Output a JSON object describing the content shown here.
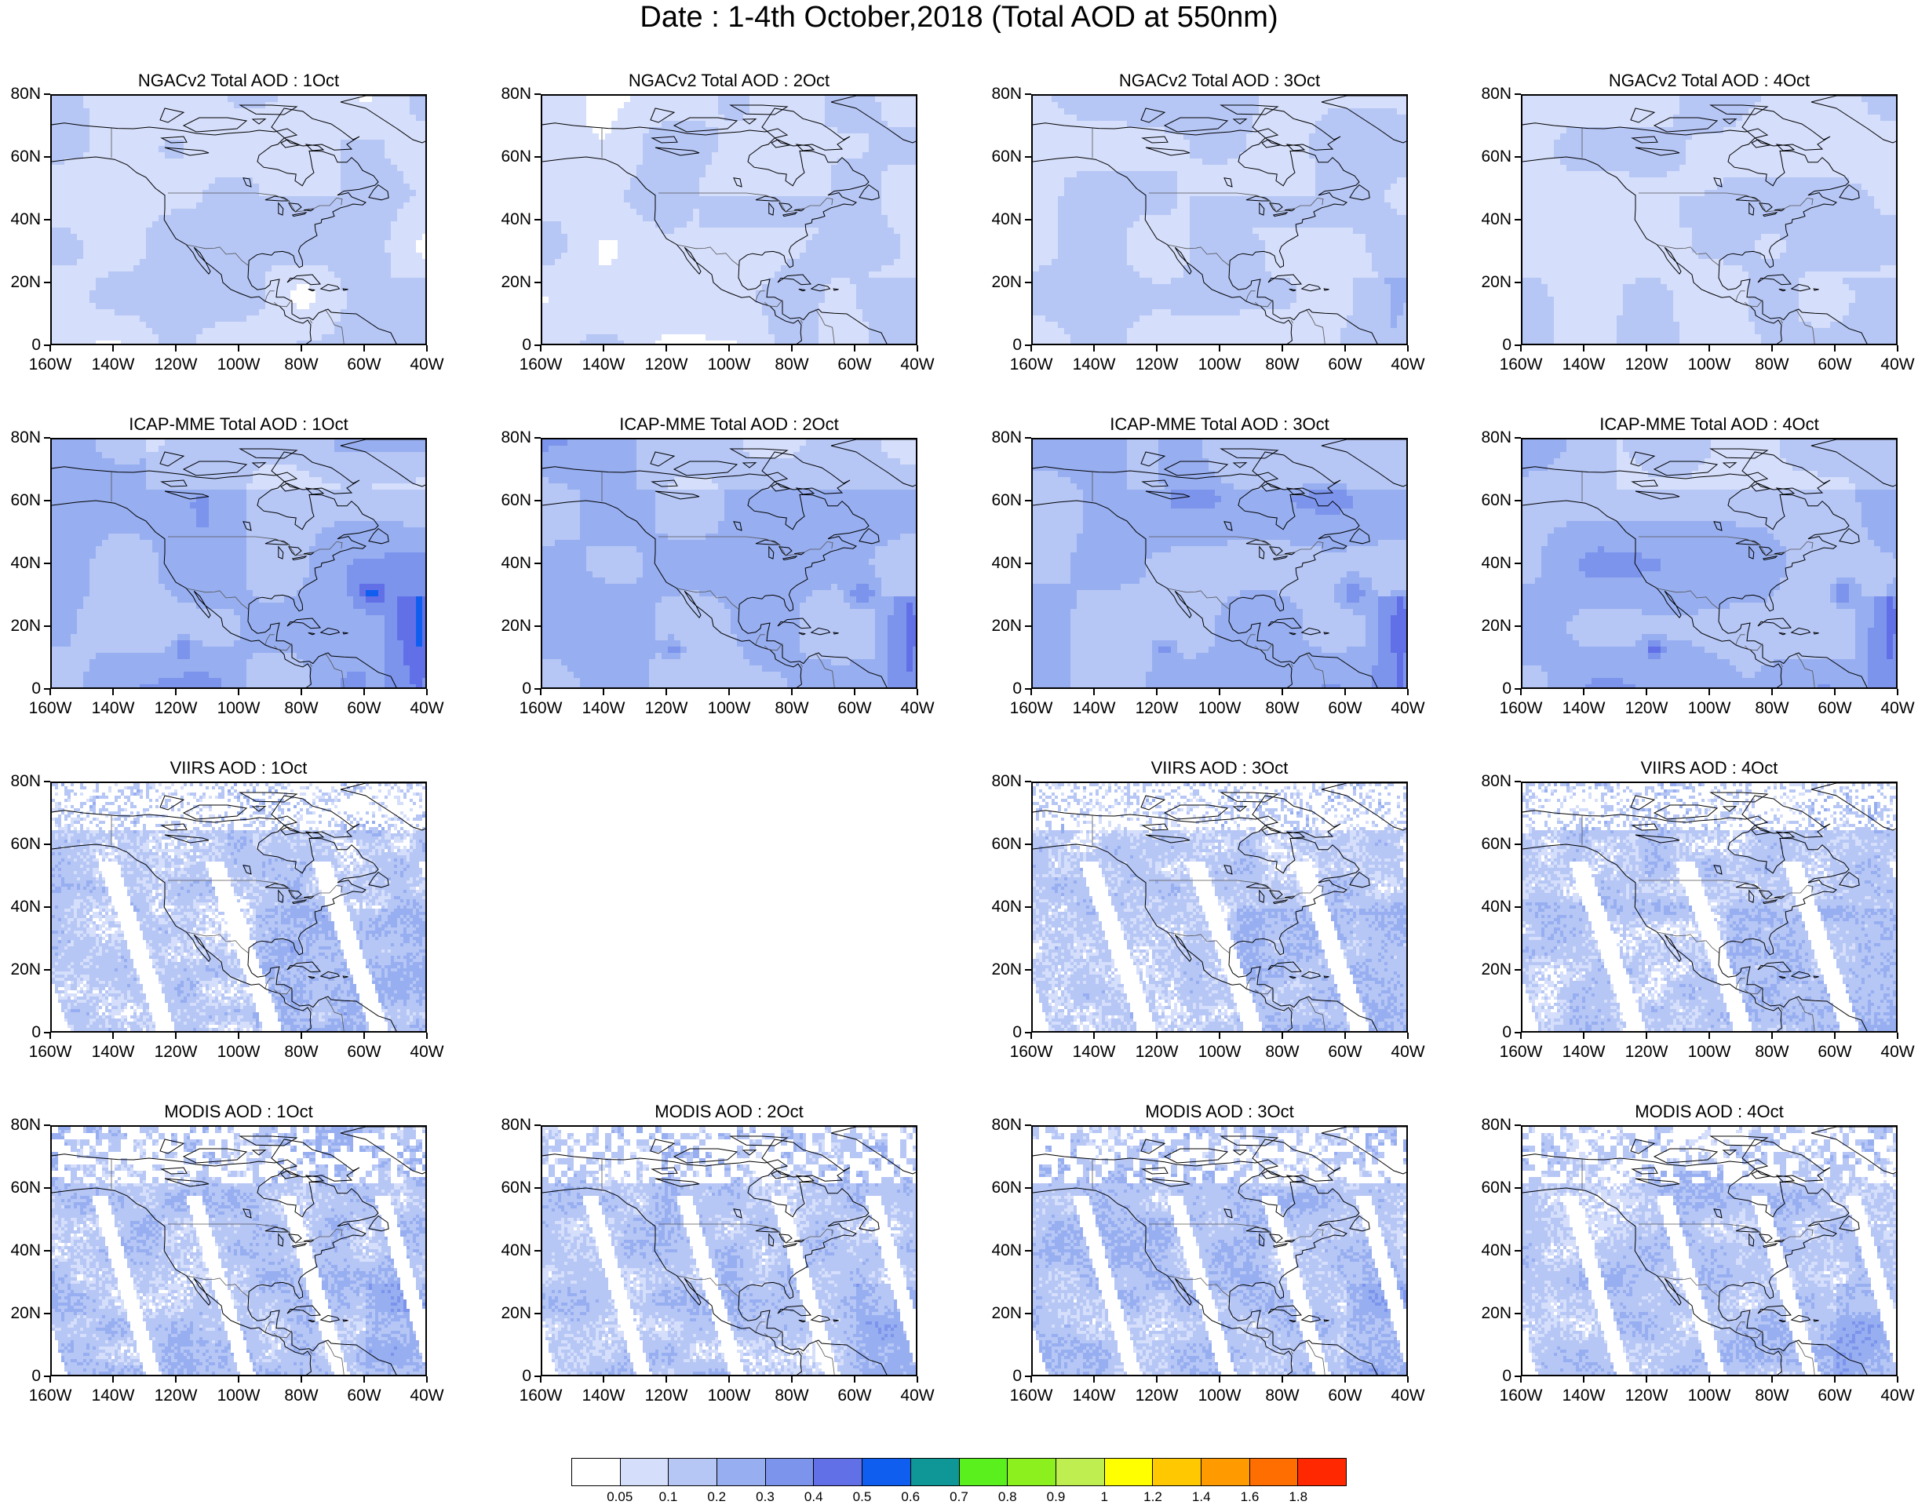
{
  "title": "Date : 1-4th October,2018 (Total AOD at 550nm)",
  "map": {
    "lon_range": [
      -160,
      -40
    ],
    "lat_range": [
      0,
      80
    ],
    "y_ticks": [
      "80N",
      "60N",
      "40N",
      "20N",
      "0"
    ],
    "x_ticks": [
      "160W",
      "140W",
      "120W",
      "100W",
      "80W",
      "60W",
      "40W"
    ]
  },
  "colorbar": {
    "colors": [
      "#ffffff",
      "#d5defa",
      "#b6c6f5",
      "#97aef0",
      "#7c94ec",
      "#6270e8",
      "#0f5ef0",
      "#0f9696",
      "#5af01e",
      "#8cf01e",
      "#beee50",
      "#ffff00",
      "#ffc800",
      "#ff9b00",
      "#ff6e00",
      "#ff2800"
    ],
    "labels": [
      "0.05",
      "0.1",
      "0.2",
      "0.3",
      "0.4",
      "0.5",
      "0.6",
      "0.7",
      "0.8",
      "0.9",
      "1",
      "1.2",
      "1.4",
      "1.6",
      "1.8"
    ]
  },
  "panels": [
    {
      "row": 0,
      "col": 0,
      "title": "NGACv2 Total AOD : 1Oct",
      "dataset": "ngac",
      "level": 1.0
    },
    {
      "row": 0,
      "col": 1,
      "title": "NGACv2 Total AOD : 2Oct",
      "dataset": "ngac",
      "level": 1.0
    },
    {
      "row": 0,
      "col": 2,
      "title": "NGACv2 Total AOD : 3Oct",
      "dataset": "ngac",
      "level": 1.1
    },
    {
      "row": 0,
      "col": 3,
      "title": "NGACv2 Total AOD : 4Oct",
      "dataset": "ngac",
      "level": 1.1
    },
    {
      "row": 1,
      "col": 0,
      "title": "ICAP-MME Total AOD : 1Oct",
      "dataset": "icap",
      "level": 1.6
    },
    {
      "row": 1,
      "col": 1,
      "title": "ICAP-MME Total AOD : 2Oct",
      "dataset": "icap",
      "level": 1.5
    },
    {
      "row": 1,
      "col": 2,
      "title": "ICAP-MME Total AOD : 3Oct",
      "dataset": "icap",
      "level": 1.5
    },
    {
      "row": 1,
      "col": 3,
      "title": "ICAP-MME Total AOD : 4Oct",
      "dataset": "icap",
      "level": 1.7
    },
    {
      "row": 2,
      "col": 0,
      "title": "VIIRS AOD : 1Oct",
      "dataset": "viirs",
      "level": 1.2
    },
    {
      "row": 2,
      "col": 2,
      "title": "VIIRS AOD : 3Oct",
      "dataset": "viirs",
      "level": 1.2
    },
    {
      "row": 2,
      "col": 3,
      "title": "VIIRS AOD : 4Oct",
      "dataset": "viirs",
      "level": 1.2
    },
    {
      "row": 3,
      "col": 0,
      "title": "MODIS AOD : 1Oct",
      "dataset": "modis",
      "level": 1.3
    },
    {
      "row": 3,
      "col": 1,
      "title": "MODIS AOD : 2Oct",
      "dataset": "modis",
      "level": 1.2
    },
    {
      "row": 3,
      "col": 2,
      "title": "MODIS AOD : 3Oct",
      "dataset": "modis",
      "level": 1.3
    },
    {
      "row": 3,
      "col": 3,
      "title": "MODIS AOD : 4Oct",
      "dataset": "modis",
      "level": 1.2
    }
  ]
}
